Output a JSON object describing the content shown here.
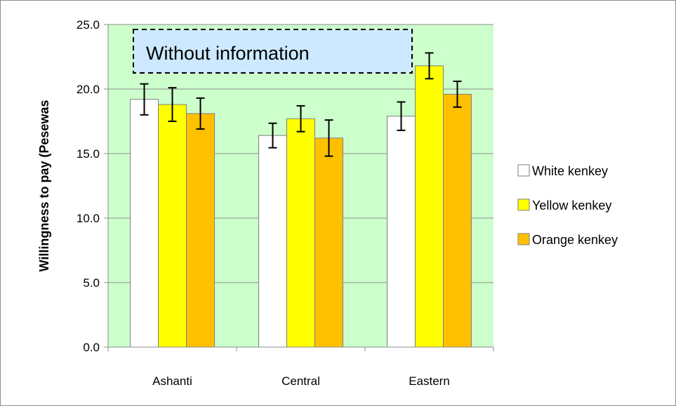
{
  "chart_data": {
    "type": "bar",
    "title": "",
    "ylabel": "Willingness to pay (Pesewas",
    "xlabel": "",
    "ylim": [
      0,
      25
    ],
    "yticks": [
      "0.0",
      "5.0",
      "10.0",
      "15.0",
      "20.0",
      "25.0"
    ],
    "ytick_values": [
      0,
      5,
      10,
      15,
      20,
      25
    ],
    "categories": [
      "Ashanti",
      "Central",
      "Eastern"
    ],
    "series": [
      {
        "name": "White kenkey",
        "color": "#ffffff",
        "values": [
          19.2,
          16.4,
          17.9
        ],
        "errors": [
          1.2,
          0.95,
          1.1
        ]
      },
      {
        "name": "Yellow kenkey",
        "color": "#ffff00",
        "values": [
          18.8,
          17.7,
          21.8
        ],
        "errors": [
          1.3,
          1.0,
          1.0
        ]
      },
      {
        "name": "Orange kenkey",
        "color": "#ffc000",
        "values": [
          18.1,
          16.2,
          19.6
        ],
        "errors": [
          1.2,
          1.4,
          1.0
        ]
      }
    ],
    "annotation": "Without information",
    "plot_background": "#ccffcc",
    "annotation_background": "#cce9ff",
    "gridlines": true,
    "legend_position": "right"
  }
}
